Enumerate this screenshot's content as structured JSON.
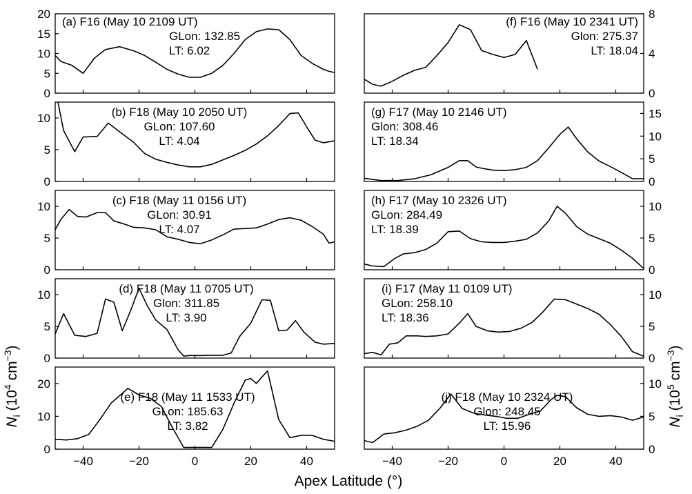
{
  "figure": {
    "xlabel": "Apex Latitude (°)",
    "left_ylabel": "N_i (10^4 cm^-3)",
    "right_ylabel": "N_i (10^5 cm^-3)",
    "xlim": [
      -50,
      50
    ],
    "xticks": [
      -40,
      -20,
      0,
      20,
      40
    ]
  },
  "chart_data": [
    {
      "id": "a",
      "type": "line",
      "side": "left",
      "annotation": [
        "(a) F16 (May 10 2109 UT)",
        "GLon: 132.85",
        "LT: 6.02"
      ],
      "ylim": [
        0,
        20
      ],
      "yticks": [
        0,
        5,
        10,
        15,
        20
      ],
      "x": [
        -50,
        -48,
        -44,
        -40,
        -36,
        -32,
        -27,
        -22,
        -18,
        -14,
        -10,
        -6,
        -2,
        2,
        6,
        10,
        14,
        18,
        22,
        26,
        30,
        34,
        38,
        42,
        46,
        48,
        50
      ],
      "y": [
        9.5,
        8,
        7,
        5,
        8.8,
        11,
        11.7,
        10.7,
        9.5,
        7.8,
        6,
        4.8,
        4,
        4,
        5,
        7,
        10,
        13.5,
        15.5,
        16.2,
        16,
        13.5,
        9.5,
        7.5,
        6,
        5.5,
        5.2
      ]
    },
    {
      "id": "b",
      "type": "line",
      "side": "left",
      "annotation": [
        "(b) F18 (May 10 2050 UT)",
        "GLon: 107.60",
        "LT: 4.04"
      ],
      "ylim": [
        0,
        12.5
      ],
      "yticks": [
        0,
        5,
        10
      ],
      "x": [
        -49,
        -47,
        -43,
        -40,
        -35,
        -31,
        -26,
        -22,
        -18,
        -14,
        -10,
        -6,
        -2,
        2,
        6,
        10,
        14,
        18,
        22,
        26,
        30,
        34,
        37,
        40,
        43,
        46,
        50
      ],
      "y": [
        12.5,
        8,
        4.7,
        7,
        7.1,
        9.2,
        7.5,
        6.2,
        4.4,
        3.5,
        3,
        2.6,
        2.3,
        2.3,
        2.7,
        3.4,
        4.1,
        4.9,
        5.9,
        7.2,
        8.8,
        10.7,
        10.8,
        8.6,
        6.5,
        6.1,
        6.4
      ]
    },
    {
      "id": "c",
      "type": "line",
      "side": "left",
      "annotation": [
        "(c) F18 (May 11 0156 UT)",
        "GLon: 30.91",
        "LT: 4.07"
      ],
      "ylim": [
        0,
        12.5
      ],
      "yticks": [
        0,
        5,
        10
      ],
      "x": [
        -50,
        -48,
        -45,
        -42,
        -39,
        -35,
        -32,
        -29,
        -26,
        -22,
        -18,
        -14,
        -10,
        -6,
        -2,
        2,
        6,
        10,
        14,
        18,
        22,
        26,
        30,
        34,
        38,
        42,
        46,
        48,
        50
      ],
      "y": [
        6.3,
        7.9,
        9.5,
        8.4,
        8.3,
        9,
        9,
        7.7,
        7.3,
        6.7,
        6.6,
        6.3,
        5.2,
        4.8,
        4.3,
        4.1,
        4.7,
        5.5,
        6.4,
        6.5,
        6.6,
        7.2,
        7.9,
        8.2,
        7.8,
        6.8,
        5.6,
        4.2,
        4.4
      ]
    },
    {
      "id": "d",
      "type": "line",
      "side": "left",
      "annotation": [
        "(d) F18 (May 11 0705 UT)",
        "Glon: 311.85",
        "LT: 3.90"
      ],
      "ylim": [
        0,
        12.5
      ],
      "yticks": [
        0,
        5,
        10
      ],
      "x": [
        -50,
        -47,
        -43,
        -39,
        -35,
        -32,
        -29,
        -26,
        -23,
        -20,
        -17,
        -14,
        -10,
        -6,
        -4,
        -2,
        2,
        6,
        10,
        13,
        16,
        20,
        24,
        27,
        30,
        33,
        36,
        39,
        43,
        46,
        50
      ],
      "y": [
        3.8,
        7,
        3.6,
        3.4,
        3.9,
        9.3,
        8.8,
        4.3,
        7.5,
        11,
        8.2,
        6,
        4.5,
        1.3,
        0.3,
        0.4,
        0.4,
        0.45,
        0.45,
        0.8,
        3.4,
        5.5,
        9.2,
        9.1,
        4.3,
        4.4,
        5.9,
        4.1,
        2.5,
        2.2,
        2.3
      ]
    },
    {
      "id": "e",
      "type": "line",
      "side": "left",
      "annotation": [
        "(e) F18 (May 11 1533 UT)",
        "GLon: 185.63",
        "LT: 3.82"
      ],
      "ylim": [
        0,
        25
      ],
      "yticks": [
        0,
        10,
        20
      ],
      "x": [
        -50,
        -46,
        -42,
        -38,
        -34,
        -30,
        -26,
        -24,
        -20,
        -16,
        -12,
        -8,
        -4,
        -2,
        0,
        2,
        4,
        6,
        10,
        14,
        18,
        20,
        22,
        24,
        26,
        30,
        34,
        38,
        42,
        46,
        50
      ],
      "y": [
        3,
        2.8,
        3.2,
        4.5,
        9,
        14,
        17,
        18.5,
        16.5,
        15.5,
        13,
        6.5,
        0.5,
        0.5,
        0.5,
        0.5,
        0.5,
        0.5,
        6,
        14,
        21,
        21.5,
        20,
        22,
        23.8,
        9,
        3.5,
        4.2,
        4.2,
        3,
        2.4
      ]
    },
    {
      "id": "f",
      "type": "line",
      "side": "right",
      "annotation": [
        "(f) F16 (May 10 2341 UT)",
        "Glon: 275.37",
        "LT: 18.04"
      ],
      "ylim": [
        0,
        8
      ],
      "yticks": [
        0,
        4,
        8
      ],
      "x": [
        -50,
        -47,
        -44,
        -40,
        -36,
        -32,
        -28,
        -24,
        -20,
        -16,
        -12,
        -8,
        -4,
        0,
        4,
        8,
        12
      ],
      "y": [
        1.4,
        0.9,
        0.7,
        1.2,
        1.8,
        2.3,
        2.6,
        3.8,
        5.1,
        6.9,
        6.4,
        4.3,
        3.9,
        3.6,
        3.9,
        5.3,
        2.4
      ]
    },
    {
      "id": "g",
      "type": "line",
      "side": "right",
      "annotation": [
        "(g) F17 (May 10 2146 UT)",
        "Glon: 308.46",
        "LT: 18.34"
      ],
      "ylim": [
        0,
        17.5
      ],
      "yticks": [
        0,
        5,
        10,
        15
      ],
      "x": [
        -50,
        -44,
        -38,
        -32,
        -26,
        -20,
        -16,
        -13,
        -10,
        -7,
        -4,
        0,
        4,
        8,
        12,
        16,
        20,
        23,
        26,
        30,
        34,
        38,
        42,
        46,
        50
      ],
      "y": [
        0.7,
        0.2,
        0.2,
        0.6,
        1.5,
        3.1,
        4.6,
        4.6,
        3.2,
        2.8,
        2.5,
        2.4,
        2.6,
        3.1,
        4.6,
        7.4,
        10.4,
        12,
        9.4,
        6.5,
        4.5,
        3.3,
        2,
        0.6,
        0.6
      ]
    },
    {
      "id": "h",
      "type": "line",
      "side": "right",
      "annotation": [
        "(h) F17 (May 10 2326 UT)",
        "GLon: 284.49",
        "LT: 18.39"
      ],
      "ylim": [
        0,
        12.5
      ],
      "yticks": [
        0,
        5,
        10
      ],
      "x": [
        -50,
        -47,
        -43,
        -39,
        -36,
        -32,
        -28,
        -24,
        -20,
        -16,
        -12,
        -8,
        -4,
        0,
        4,
        8,
        12,
        16,
        19,
        22,
        26,
        30,
        34,
        38,
        42,
        46,
        50
      ],
      "y": [
        0.9,
        0.6,
        0.5,
        1.8,
        2.5,
        2.7,
        3.2,
        4.2,
        6,
        6.1,
        4.9,
        4.4,
        4.3,
        4.3,
        4.5,
        4.8,
        5.8,
        7.7,
        10,
        8.9,
        6.8,
        5.6,
        4.9,
        4.2,
        3.1,
        1.8,
        0.2
      ]
    },
    {
      "id": "i",
      "type": "line",
      "side": "right",
      "annotation": [
        "(i) F17 (May 11 0109 UT)",
        "GLon: 258.10",
        "LT: 18.36"
      ],
      "ylim": [
        0,
        12.5
      ],
      "yticks": [
        0,
        5,
        10
      ],
      "x": [
        -50,
        -47,
        -44,
        -41,
        -38,
        -35,
        -31,
        -28,
        -24,
        -20,
        -16,
        -13,
        -10,
        -6,
        -2,
        2,
        6,
        10,
        14,
        18,
        22,
        26,
        30,
        34,
        38,
        42,
        46,
        50
      ],
      "y": [
        0.7,
        0.9,
        0.5,
        2.2,
        2.4,
        3.5,
        3.5,
        3.4,
        3.5,
        3.8,
        5.5,
        7,
        5,
        4.3,
        4.1,
        4.2,
        4.7,
        5.6,
        7.3,
        9.3,
        9.2,
        8.5,
        7.8,
        6.9,
        5.3,
        3.4,
        1,
        0.3
      ]
    },
    {
      "id": "j",
      "type": "line",
      "side": "right",
      "annotation": [
        "(j) F18 (May 10 2324 UT)",
        "Glon: 248.45",
        "LT: 15.96"
      ],
      "ylim": [
        0,
        12.5
      ],
      "yticks": [
        0,
        5,
        10
      ],
      "x": [
        -50,
        -47,
        -43,
        -39,
        -35,
        -31,
        -27,
        -23,
        -19,
        -15,
        -11,
        -7,
        -3,
        1,
        5,
        9,
        13,
        17,
        19,
        22,
        26,
        30,
        34,
        38,
        42,
        46,
        50
      ],
      "y": [
        1.3,
        1,
        2.3,
        2.5,
        2.9,
        3.5,
        4.4,
        6.2,
        8.4,
        6.2,
        5.5,
        5.2,
        5,
        4.7,
        4.7,
        5.3,
        5.8,
        7.6,
        8.2,
        8,
        6.3,
        5.3,
        5,
        5.1,
        4.9,
        4.4,
        4.9
      ]
    }
  ]
}
